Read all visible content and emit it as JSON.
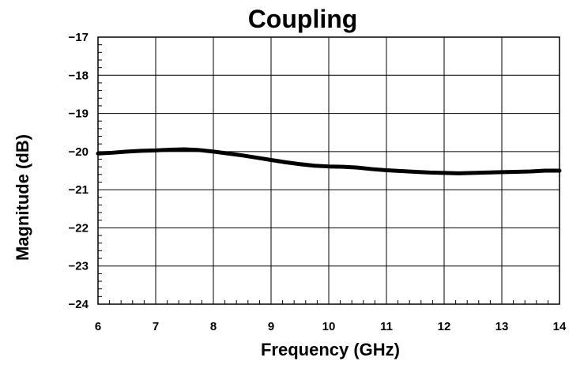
{
  "chart_data": {
    "type": "line",
    "title": "Coupling",
    "xlabel": "Frequency  (GHz)",
    "ylabel": "Magnitude (dB)",
    "xlim": [
      6,
      14
    ],
    "ylim": [
      -24,
      -17
    ],
    "xticks": [
      "6",
      "7",
      "8",
      "9",
      "10",
      "11",
      "12",
      "13",
      "14"
    ],
    "yticks": [
      "-17",
      "-18",
      "-19",
      "-20",
      "-21",
      "-22",
      "-23",
      "-24"
    ],
    "grid": true,
    "series": [
      {
        "x": [
          6.0,
          6.25,
          6.5,
          6.75,
          7.0,
          7.25,
          7.5,
          7.75,
          8.0,
          8.25,
          8.5,
          8.75,
          9.0,
          9.25,
          9.5,
          9.75,
          10.0,
          10.25,
          10.5,
          10.75,
          11.0,
          11.25,
          11.5,
          11.75,
          12.0,
          12.25,
          12.5,
          12.75,
          13.0,
          13.25,
          13.5,
          13.75,
          14.0
        ],
        "y": [
          -20.05,
          -20.03,
          -20.0,
          -19.98,
          -19.97,
          -19.95,
          -19.94,
          -19.96,
          -20.0,
          -20.05,
          -20.1,
          -20.16,
          -20.22,
          -20.28,
          -20.33,
          -20.37,
          -20.39,
          -20.4,
          -20.42,
          -20.46,
          -20.49,
          -20.51,
          -20.53,
          -20.55,
          -20.56,
          -20.57,
          -20.56,
          -20.55,
          -20.54,
          -20.53,
          -20.52,
          -20.5,
          -20.5
        ]
      }
    ],
    "colors": {
      "line": "#000000",
      "grid": "#000000"
    }
  }
}
